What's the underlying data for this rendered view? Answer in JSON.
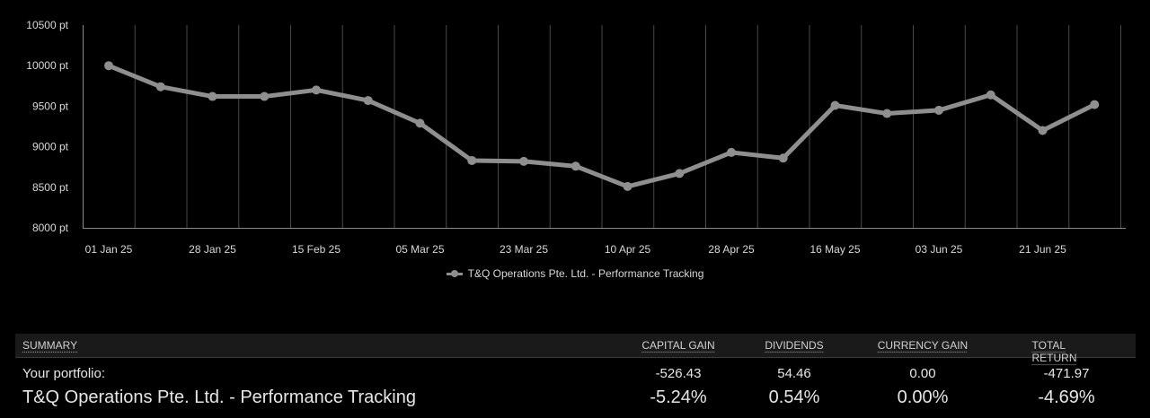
{
  "chart_data": {
    "type": "line",
    "x_labels": [
      "01 Jan 25",
      "28 Jan 25",
      "15 Feb 25",
      "05 Mar 25",
      "23 Mar 25",
      "10 Apr 25",
      "28 Apr 25",
      "16 May 25",
      "03 Jun 25",
      "21 Jun 25"
    ],
    "y_ticks": [
      "8000 pt",
      "8500 pt",
      "9000 pt",
      "9500 pt",
      "10000 pt",
      "10500 pt"
    ],
    "ylim": [
      8000,
      10500
    ],
    "grid": true,
    "series": [
      {
        "name": "T&Q Operations Pte. Ltd. - Performance Tracking",
        "color": "#8f8f8f",
        "values": [
          10000,
          9740,
          9620,
          9620,
          9700,
          9570,
          9290,
          8830,
          8820,
          8760,
          8510,
          8670,
          8930,
          8860,
          9510,
          9410,
          9450,
          9640,
          9200,
          9520
        ]
      }
    ],
    "legend_position": "bottom-center"
  },
  "summary": {
    "headers": {
      "summary": "SUMMARY",
      "capital_gain": "CAPITAL GAIN",
      "dividends": "DIVIDENDS",
      "currency_gain": "CURRENCY GAIN",
      "total_return": "TOTAL RETURN"
    },
    "portfolio": {
      "label": "Your portfolio:",
      "capital_gain": "-526.43",
      "dividends": "54.46",
      "currency_gain": "0.00",
      "total_return": "-471.97"
    },
    "fund": {
      "label": "T&Q Operations Pte. Ltd. - Performance Tracking",
      "capital_gain": "-5.24%",
      "dividends": "0.54%",
      "currency_gain": "0.00%",
      "total_return": "-4.69%"
    }
  }
}
